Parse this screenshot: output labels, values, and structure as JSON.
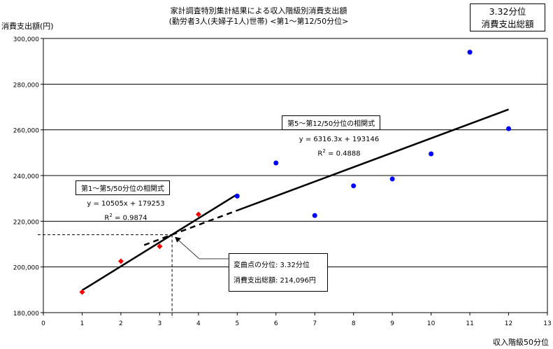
{
  "chart_data": {
    "type": "scatter",
    "title": [
      "家計調査特別集計結果による収入階級別消費支出額",
      "(勤労者3人(夫婦子1人)世帯) <第1〜第12/50分位>"
    ],
    "xlabel": "収入階級50分位",
    "ylabel": "消費支出額(円)",
    "xlim": [
      0,
      13
    ],
    "ylim": [
      180000,
      300000
    ],
    "x_ticks": [
      "0",
      "1",
      "2",
      "3",
      "4",
      "5",
      "6",
      "7",
      "8",
      "9",
      "10",
      "11",
      "12",
      "13"
    ],
    "y_ticks": [
      "180,000",
      "200,000",
      "220,000",
      "240,000",
      "260,000",
      "280,000",
      "300,000"
    ],
    "grid": "horizontal",
    "series": [
      {
        "name": "第1〜第5/50分位",
        "color": "#ff0000",
        "marker": "diamond",
        "x": [
          1,
          2,
          3,
          4
        ],
        "y": [
          189000,
          202500,
          209000,
          223000
        ]
      },
      {
        "name": "第5〜第12/50分位",
        "color": "#0000ff",
        "marker": "circle",
        "x": [
          5,
          6,
          7,
          8,
          9,
          10,
          11,
          12
        ],
        "y": [
          231000,
          245500,
          222500,
          235500,
          238500,
          249500,
          294000,
          260500
        ]
      }
    ],
    "trendlines": [
      {
        "label": "第1〜第5/50分位の相関式",
        "equation": "y = 10505x + 179253",
        "r2_label": "R",
        "r2_value": " = 0.9874",
        "slope": 10505,
        "intercept": 179253,
        "x_range": [
          1,
          5
        ]
      },
      {
        "label": "第5〜第12/50分位の相関式",
        "equation": "y = 6316.3x + 193146",
        "r2_label": "R",
        "r2_value": " = 0.4888",
        "slope": 6316.3,
        "intercept": 193146,
        "x_range": [
          5,
          12
        ],
        "dashed_from": 2.6
      }
    ],
    "inflection": {
      "x": 3.32,
      "y": 214096,
      "line1": "変曲点の分位: 3.32分位",
      "line2": "消費支出総額: 214,096円"
    },
    "corner_box": [
      "3.32分位",
      "消費支出総額"
    ]
  }
}
